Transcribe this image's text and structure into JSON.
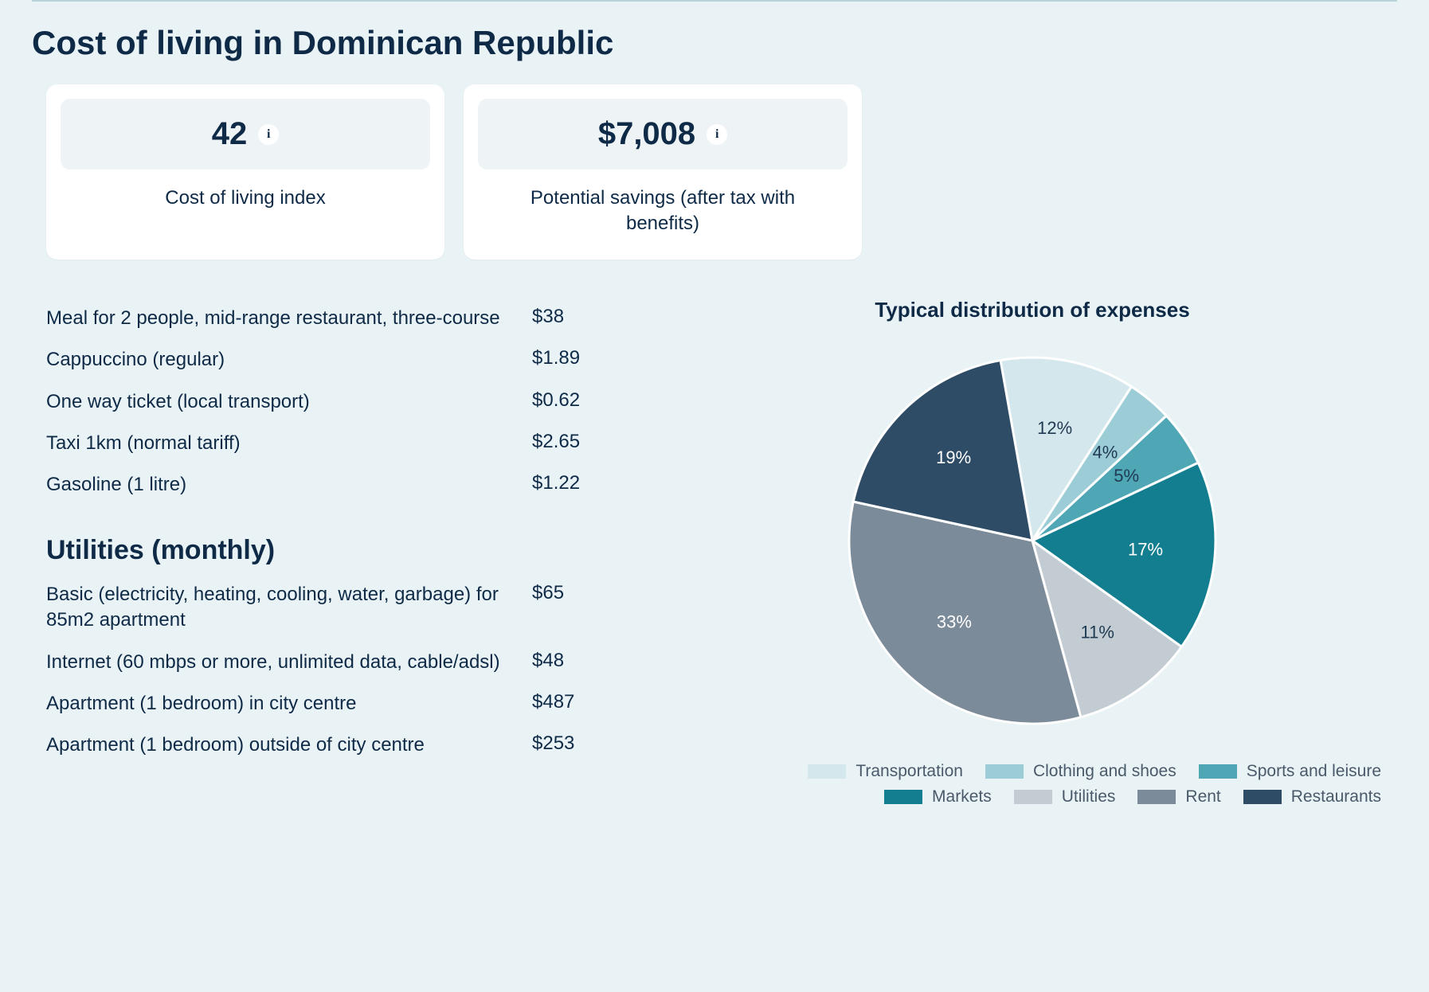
{
  "page": {
    "title": "Cost of living in Dominican Republic",
    "background_color": "#e9f2f5",
    "text_color": "#0e2a47",
    "rule_color": "#b9d3db"
  },
  "cards": {
    "index": {
      "value": "42",
      "label": "Cost of living index"
    },
    "savings": {
      "value": "$7,008",
      "label": "Potential savings (after tax with benefits)"
    }
  },
  "costs_general": [
    {
      "label": "Meal for 2 people, mid-range restaurant, three-course",
      "value": "$38"
    },
    {
      "label": "Cappuccino (regular)",
      "value": "$1.89"
    },
    {
      "label": "One way ticket (local transport)",
      "value": "$0.62"
    },
    {
      "label": "Taxi 1km (normal tariff)",
      "value": "$2.65"
    },
    {
      "label": "Gasoline (1 litre)",
      "value": "$1.22"
    }
  ],
  "utilities": {
    "title": "Utilities (monthly)",
    "items": [
      {
        "label": "Basic (electricity, heating, cooling, water, garbage) for 85m2 apartment",
        "value": "$65"
      },
      {
        "label": "Internet (60 mbps or more, unlimited data, cable/adsl)",
        "value": "$48"
      },
      {
        "label": "Apartment (1 bedroom) in city centre",
        "value": "$487"
      },
      {
        "label": "Apartment (1 bedroom) outside of city centre",
        "value": "$253"
      }
    ]
  },
  "pie_chart": {
    "title": "Typical distribution of expenses",
    "type": "pie",
    "radius": 230,
    "stroke_color": "#ffffff",
    "stroke_width": 3,
    "start_angle_deg": -10,
    "label_fontsize": 22,
    "slices": [
      {
        "name": "Transportation",
        "value": 12,
        "label": "12%",
        "color": "#d4e7ec",
        "label_color": "dark"
      },
      {
        "name": "Clothing and shoes",
        "value": 4,
        "label": "4%",
        "color": "#9ccdd7",
        "label_color": "dark"
      },
      {
        "name": "Sports and leisure",
        "value": 5,
        "label": "5%",
        "color": "#4fa7b5",
        "label_color": "dark"
      },
      {
        "name": "Markets",
        "value": 17,
        "label": "17%",
        "color": "#137e8f",
        "label_color": "light"
      },
      {
        "name": "Utilities",
        "value": 11,
        "label": "11%",
        "color": "#c3ccd3",
        "label_color": "dark"
      },
      {
        "name": "Rent",
        "value": 33,
        "label": "33%",
        "color": "#7c8b99",
        "label_color": "light"
      },
      {
        "name": "Restaurants",
        "value": 19,
        "label": "19%",
        "color": "#2f4c67",
        "label_color": "light"
      }
    ],
    "legend_order": [
      "Transportation",
      "Clothing and shoes",
      "Sports and leisure",
      "Markets",
      "Utilities",
      "Rent",
      "Restaurants"
    ]
  }
}
